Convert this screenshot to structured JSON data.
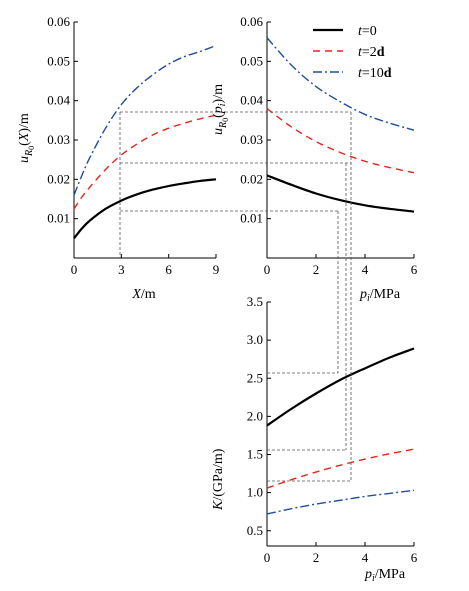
{
  "colors": {
    "t0": "#000000",
    "t2d": "#e8231b",
    "t10d": "#1f4e9e",
    "guide": "#555555"
  },
  "legend": [
    {
      "series": "t0",
      "text": "t=0",
      "style": "solid"
    },
    {
      "series": "t2d",
      "text": "t=2d",
      "style": "dashed"
    },
    {
      "series": "t10d",
      "text": "t=10d",
      "style": "dashdot"
    }
  ],
  "chart_data": [
    {
      "type": "line",
      "panel": "top-left",
      "xlabel": "X/m",
      "ylabel": "u_R0(X)/m",
      "xlim": [
        0,
        9
      ],
      "ylim": [
        0.0,
        0.06
      ],
      "xticks": [
        "0",
        "3",
        "6",
        "9"
      ],
      "yticks": [
        "0.01",
        "0.02",
        "0.03",
        "0.04",
        "0.05",
        "0.06"
      ],
      "series": [
        {
          "name": "t=0",
          "key": "t0",
          "x": [
            0,
            0.5,
            1,
            2,
            3,
            4,
            5,
            6,
            7,
            8,
            9
          ],
          "y": [
            0.005,
            0.0075,
            0.0095,
            0.0125,
            0.0146,
            0.0162,
            0.0174,
            0.0183,
            0.019,
            0.0196,
            0.02
          ]
        },
        {
          "name": "t=2d",
          "key": "t2d",
          "x": [
            0,
            0.5,
            1,
            2,
            3,
            4,
            5,
            6,
            7,
            8,
            9
          ],
          "y": [
            0.0125,
            0.0155,
            0.018,
            0.0225,
            0.0262,
            0.029,
            0.0313,
            0.033,
            0.0343,
            0.0354,
            0.0363
          ]
        },
        {
          "name": "t=10d",
          "key": "t10d",
          "x": [
            0,
            0.5,
            1,
            2,
            3,
            4,
            5,
            6,
            7,
            8,
            9
          ],
          "y": [
            0.016,
            0.021,
            0.0255,
            0.033,
            0.039,
            0.0433,
            0.0466,
            0.0493,
            0.0512,
            0.0525,
            0.054
          ]
        }
      ]
    },
    {
      "type": "line",
      "panel": "top-right",
      "xlabel": "p_i/MPa",
      "ylabel": "u_R0(p_i)/m",
      "xlim": [
        0,
        6
      ],
      "ylim": [
        0.0,
        0.06
      ],
      "xticks": [
        "0",
        "2",
        "4",
        "6"
      ],
      "yticks": [
        "0.01",
        "0.02",
        "0.03",
        "0.04",
        "0.05",
        "0.06"
      ],
      "series": [
        {
          "name": "t=0",
          "key": "t0",
          "x": [
            0,
            1,
            2,
            3,
            4,
            5,
            6
          ],
          "y": [
            0.021,
            0.0186,
            0.0164,
            0.0147,
            0.0134,
            0.0125,
            0.0118
          ]
        },
        {
          "name": "t=2d",
          "key": "t2d",
          "x": [
            0,
            1,
            2,
            3,
            4,
            5,
            6
          ],
          "y": [
            0.038,
            0.0333,
            0.0296,
            0.0268,
            0.0246,
            0.023,
            0.0217
          ]
        },
        {
          "name": "t=10d",
          "key": "t10d",
          "x": [
            0,
            1,
            2,
            3,
            4,
            5,
            6
          ],
          "y": [
            0.056,
            0.049,
            0.0436,
            0.0397,
            0.0365,
            0.0343,
            0.0325
          ]
        }
      ]
    },
    {
      "type": "line",
      "panel": "bottom",
      "xlabel": "p_i/MPa",
      "ylabel": "K/(GPa/m)",
      "xlim": [
        0,
        6
      ],
      "ylim": [
        0.3,
        3.5
      ],
      "xticks": [
        "0",
        "2",
        "4",
        "6"
      ],
      "yticks": [
        "0.5",
        "1.0",
        "1.5",
        "2.0",
        "2.5",
        "3.0",
        "3.5"
      ],
      "series": [
        {
          "name": "t=0",
          "key": "t0",
          "x": [
            0,
            1,
            2,
            3,
            4,
            5,
            6
          ],
          "y": [
            1.88,
            2.1,
            2.3,
            2.48,
            2.63,
            2.77,
            2.89
          ]
        },
        {
          "name": "t=2d",
          "key": "t2d",
          "x": [
            0,
            1,
            2,
            3,
            4,
            5,
            6
          ],
          "y": [
            1.06,
            1.17,
            1.27,
            1.36,
            1.44,
            1.51,
            1.57
          ]
        },
        {
          "name": "t=10d",
          "key": "t10d",
          "x": [
            0,
            1,
            2,
            3,
            4,
            5,
            6
          ],
          "y": [
            0.72,
            0.79,
            0.85,
            0.9,
            0.95,
            0.99,
            1.03
          ]
        }
      ]
    }
  ]
}
